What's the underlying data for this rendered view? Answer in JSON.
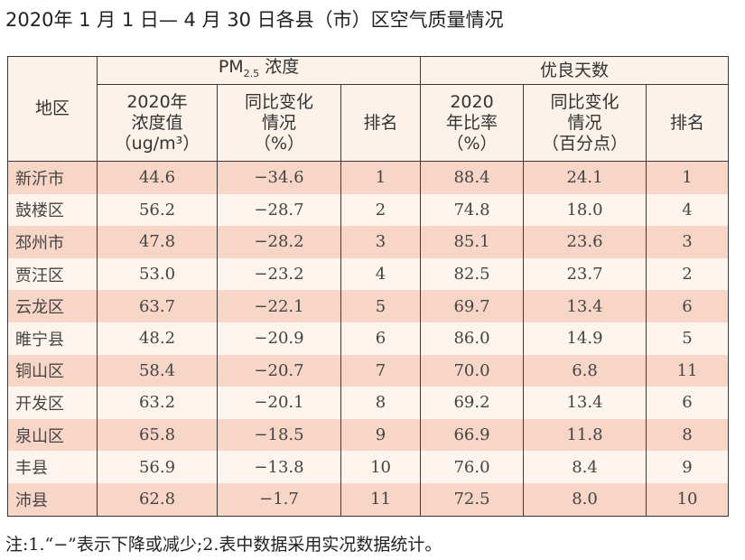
{
  "title": "2020年 1 月 1 日— 4 月 30 日各县（市）区空气质量情况",
  "header": {
    "region": "地区",
    "pm_group": "PM",
    "pm_sub": "2.5",
    "pm_group_suffix": " 浓度",
    "good_group": "优良天数",
    "columns": [
      "2020年\n浓度值\n（ug/m³）",
      "同比变化\n情况\n（%）",
      "排名",
      "2020\n年比率\n（%）",
      "同比变化\n情况\n（百分点）",
      "排名"
    ]
  },
  "rows": [
    [
      "新沂市",
      "44.6",
      "−34.6",
      "1",
      "88.4",
      "24.1",
      "1"
    ],
    [
      "鼓楼区",
      "56.2",
      "−28.7",
      "2",
      "74.8",
      "18.0",
      "4"
    ],
    [
      "邳州市",
      "47.8",
      "−28.2",
      "3",
      "85.1",
      "23.6",
      "3"
    ],
    [
      "贾汪区",
      "53.0",
      "−23.2",
      "4",
      "82.5",
      "23.7",
      "2"
    ],
    [
      "云龙区",
      "63.7",
      "−22.1",
      "5",
      "69.7",
      "13.4",
      "6"
    ],
    [
      "睢宁县",
      "48.2",
      "−20.9",
      "6",
      "86.0",
      "14.9",
      "5"
    ],
    [
      "铜山区",
      "58.4",
      "−20.7",
      "7",
      "70.0",
      "6.8",
      "11"
    ],
    [
      "开发区",
      "63.2",
      "−20.1",
      "8",
      "69.2",
      "13.4",
      "6"
    ],
    [
      "泉山区",
      "65.8",
      "−18.5",
      "9",
      "66.9",
      "11.8",
      "8"
    ],
    [
      "丰县",
      "56.9",
      "−13.8",
      "10",
      "76.0",
      "8.4",
      "9"
    ],
    [
      "沛县",
      "62.8",
      "−1.7",
      "11",
      "72.5",
      "8.0",
      "10"
    ]
  ],
  "note": "注:1.“−”表示下降或减少;2.表中数据采用实况数据统计。",
  "colors": {
    "pink_row": "#f8d6c7",
    "light_row": "#fdf4ee",
    "header_bg": "#fcf2ea"
  }
}
